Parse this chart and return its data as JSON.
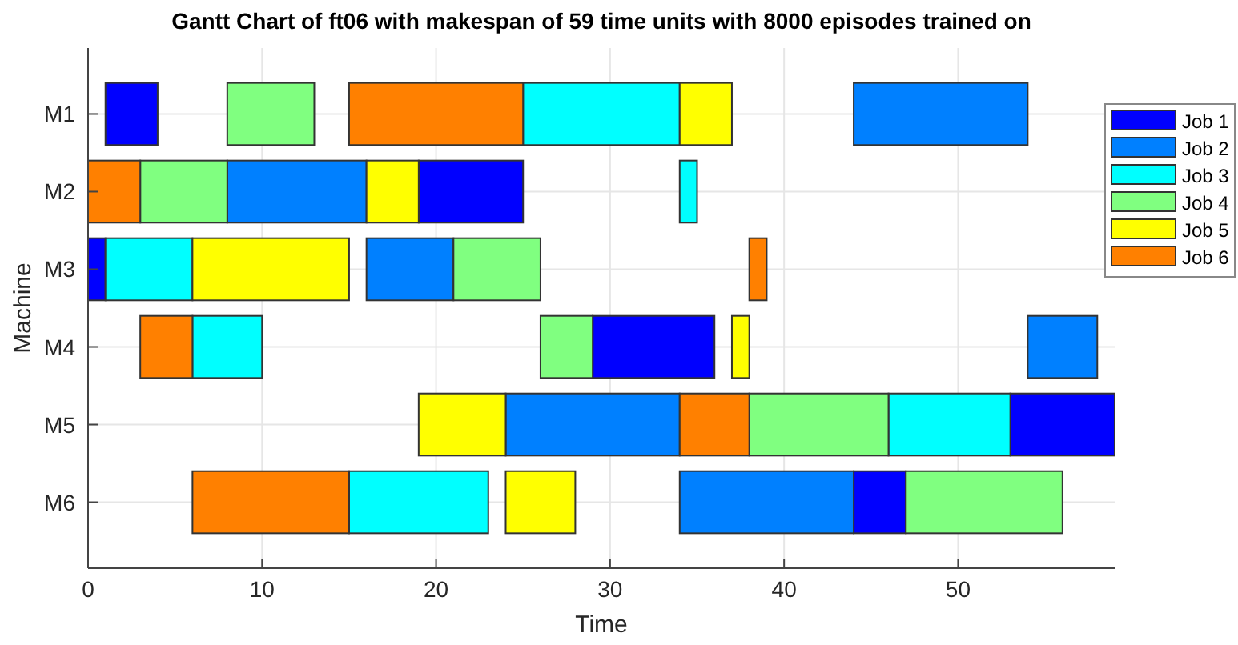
{
  "chart_data": {
    "type": "bar",
    "orientation": "horizontal",
    "title": "Gantt Chart of ft06 with makespan of 59 time units with 8000 episodes trained on",
    "xlabel": "Time",
    "ylabel": "Machine",
    "categories": [
      "M1",
      "M2",
      "M3",
      "M4",
      "M5",
      "M6"
    ],
    "series": [
      {
        "name": "Job 1",
        "color": "#0000ff",
        "base": [
          1,
          19,
          0,
          29,
          53,
          44
        ],
        "values": [
          3,
          6,
          1,
          7,
          6,
          3
        ]
      },
      {
        "name": "Job 2",
        "color": "#0080ff",
        "base": [
          44,
          8,
          16,
          54,
          24,
          34
        ],
        "values": [
          10,
          8,
          5,
          4,
          10,
          10
        ]
      },
      {
        "name": "Job 3",
        "color": "#00ffff",
        "base": [
          25,
          34,
          1,
          6,
          46,
          15
        ],
        "values": [
          9,
          1,
          5,
          4,
          7,
          8
        ]
      },
      {
        "name": "Job 4",
        "color": "#80ff80",
        "base": [
          8,
          3,
          21,
          26,
          38,
          47
        ],
        "values": [
          5,
          5,
          5,
          3,
          8,
          9
        ]
      },
      {
        "name": "Job 5",
        "color": "#ffff00",
        "base": [
          34,
          16,
          6,
          37,
          19,
          24
        ],
        "values": [
          3,
          3,
          9,
          1,
          5,
          4
        ]
      },
      {
        "name": "Job 6",
        "color": "#ff8000",
        "base": [
          15,
          0,
          38,
          3,
          34,
          6
        ],
        "values": [
          10,
          3,
          1,
          3,
          4,
          9
        ]
      }
    ],
    "xlim": [
      0,
      59
    ],
    "xticks": [
      0,
      10,
      20,
      30,
      40,
      50
    ],
    "grid": true,
    "legend": "right"
  }
}
